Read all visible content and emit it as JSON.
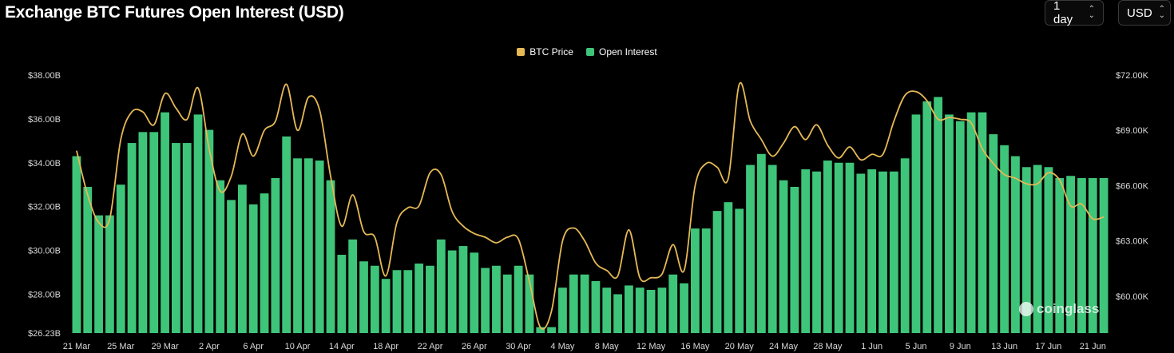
{
  "title": "Exchange BTC Futures Open Interest (USD)",
  "controls": {
    "range": "1 day",
    "currency": "USD"
  },
  "legend": [
    {
      "label": "BTC Price",
      "color": "#e6b955"
    },
    {
      "label": "Open Interest",
      "color": "#3ec57a"
    }
  ],
  "watermark": "coinglass",
  "chart_data": {
    "type": "bar",
    "grid": false,
    "legend_position": "top-center",
    "x_tick_labels": [
      "21 Mar",
      "25 Mar",
      "29 Mar",
      "2 Apr",
      "6 Apr",
      "10 Apr",
      "14 Apr",
      "18 Apr",
      "22 Apr",
      "26 Apr",
      "30 Apr",
      "4 May",
      "8 May",
      "12 May",
      "16 May",
      "20 May",
      "24 May",
      "28 May",
      "1 Jun",
      "5 Jun",
      "9 Jun",
      "13 Jun",
      "17 Jun",
      "21 Jun"
    ],
    "y_left": {
      "ticks": [
        "$38.00B",
        "$36.00B",
        "$34.00B",
        "$32.00B",
        "$30.00B",
        "$28.00B",
        "$26.23B"
      ],
      "range": [
        26.23,
        38.0
      ]
    },
    "y_right": {
      "ticks": [
        "$72.00K",
        "$69.00K",
        "$66.00K",
        "$63.00K",
        "$60.00K"
      ],
      "range": [
        58.0,
        72.0
      ]
    },
    "series": [
      {
        "name": "Open Interest",
        "unit": "B USD",
        "axis": "left",
        "values": [
          34.3,
          32.9,
          31.6,
          31.6,
          33.0,
          34.9,
          35.4,
          35.4,
          36.3,
          34.9,
          34.9,
          36.2,
          35.5,
          33.2,
          32.3,
          33.0,
          32.1,
          32.6,
          33.3,
          35.2,
          34.2,
          34.2,
          34.1,
          33.2,
          29.8,
          30.5,
          29.5,
          29.3,
          28.7,
          29.1,
          29.1,
          29.4,
          29.3,
          30.5,
          30.0,
          30.2,
          29.9,
          29.2,
          29.3,
          28.9,
          29.3,
          28.9,
          26.5,
          26.5,
          28.3,
          28.9,
          28.9,
          28.6,
          28.3,
          28.0,
          28.4,
          28.3,
          28.2,
          28.3,
          28.9,
          28.5,
          31.0,
          31.0,
          31.8,
          32.2,
          31.9,
          33.9,
          34.4,
          33.9,
          33.2,
          32.9,
          33.7,
          33.6,
          34.1,
          34.0,
          34.0,
          33.5,
          33.7,
          33.6,
          33.6,
          34.2,
          36.2,
          36.8,
          37.0,
          36.2,
          35.9,
          36.3,
          36.3,
          35.3,
          34.8,
          34.3,
          33.8,
          33.9,
          33.8,
          33.3,
          33.4,
          33.3,
          33.3,
          33.3
        ]
      },
      {
        "name": "BTC Price",
        "unit": "K USD",
        "axis": "right",
        "values": [
          67.9,
          65.5,
          64.0,
          64.2,
          68.5,
          70.0,
          70.0,
          69.3,
          71.0,
          70.2,
          69.6,
          71.3,
          68.0,
          65.7,
          66.5,
          68.8,
          67.6,
          69.0,
          69.5,
          71.5,
          69.0,
          70.8,
          70.1,
          66.5,
          63.8,
          65.5,
          63.5,
          63.2,
          61.1,
          64.0,
          64.8,
          64.9,
          66.7,
          66.6,
          64.6,
          63.8,
          63.4,
          63.2,
          62.9,
          63.2,
          63.1,
          60.8,
          58.3,
          59.2,
          63.0,
          63.7,
          63.0,
          61.8,
          61.4,
          61.1,
          63.6,
          61.0,
          61.0,
          61.2,
          62.8,
          61.4,
          66.0,
          67.2,
          67.0,
          66.4,
          71.5,
          69.5,
          68.5,
          67.6,
          68.3,
          69.2,
          68.5,
          69.3,
          68.2,
          67.5,
          68.1,
          67.4,
          67.7,
          67.7,
          69.5,
          70.9,
          71.1,
          70.6,
          69.6,
          69.7,
          69.6,
          69.4,
          68.0,
          67.2,
          66.6,
          66.4,
          66.1,
          66.1,
          66.7,
          66.3,
          64.9,
          65.0,
          64.2,
          64.3
        ]
      }
    ]
  }
}
